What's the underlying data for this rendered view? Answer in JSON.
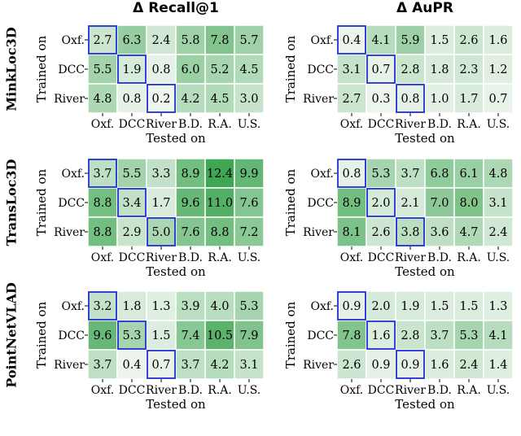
{
  "column_titles": [
    "Δ Recall@1",
    "Δ AuPR"
  ],
  "row_titles": [
    "MinkLoc3D",
    "TransLoc3D",
    "PointNetVLAD"
  ],
  "chart_data": [
    {
      "type": "heatmap",
      "title": "Δ Recall@1",
      "model": "MinkLoc3D",
      "xlabel": "Tested on",
      "ylabel": "Trained on",
      "x": [
        "Oxf.",
        "DCC",
        "River",
        "B.D.",
        "R.A.",
        "U.S."
      ],
      "y": [
        "Oxf.",
        "DCC",
        "River"
      ],
      "values": [
        [
          "2.7",
          "6.3",
          "2.4",
          "5.8",
          "7.8",
          "5.7"
        ],
        [
          "5.5",
          "1.9",
          "0.8",
          "6.0",
          "5.2",
          "4.5"
        ],
        [
          "4.8",
          "0.8",
          "0.2",
          "4.2",
          "4.5",
          "3.0"
        ]
      ],
      "highlighted_diagonal": true
    },
    {
      "type": "heatmap",
      "title": "Δ AuPR",
      "model": "MinkLoc3D",
      "xlabel": "Tested on",
      "ylabel": "Trained on",
      "x": [
        "Oxf.",
        "DCC",
        "River",
        "B.D.",
        "R.A.",
        "U.S."
      ],
      "y": [
        "Oxf.",
        "DCC",
        "River"
      ],
      "values": [
        [
          "0.4",
          "4.1",
          "5.9",
          "1.5",
          "2.6",
          "1.6"
        ],
        [
          "3.1",
          "0.7",
          "2.8",
          "1.8",
          "2.3",
          "1.2"
        ],
        [
          "2.7",
          "0.3",
          "0.8",
          "1.0",
          "1.7",
          "0.7"
        ]
      ],
      "highlighted_diagonal": true
    },
    {
      "type": "heatmap",
      "title": "Δ Recall@1",
      "model": "TransLoc3D",
      "xlabel": "Tested on",
      "ylabel": "Trained on",
      "x": [
        "Oxf.",
        "DCC",
        "River",
        "B.D.",
        "R.A.",
        "U.S."
      ],
      "y": [
        "Oxf.",
        "DCC",
        "River"
      ],
      "values": [
        [
          "3.7",
          "5.5",
          "3.3",
          "8.9",
          "12.4",
          "9.9"
        ],
        [
          "8.8",
          "3.4",
          "1.7",
          "9.6",
          "11.0",
          "7.6"
        ],
        [
          "8.8",
          "2.9",
          "5.0",
          "7.6",
          "8.8",
          "7.2"
        ]
      ],
      "highlighted_diagonal": true
    },
    {
      "type": "heatmap",
      "title": "Δ AuPR",
      "model": "TransLoc3D",
      "xlabel": "Tested on",
      "ylabel": "Trained on",
      "x": [
        "Oxf.",
        "DCC",
        "River",
        "B.D.",
        "R.A.",
        "U.S."
      ],
      "y": [
        "Oxf.",
        "DCC",
        "River"
      ],
      "values": [
        [
          "0.8",
          "5.3",
          "3.7",
          "6.8",
          "6.1",
          "4.8"
        ],
        [
          "8.9",
          "2.0",
          "2.1",
          "7.0",
          "8.0",
          "3.1"
        ],
        [
          "8.1",
          "2.6",
          "3.8",
          "3.6",
          "4.7",
          "2.4"
        ]
      ],
      "highlighted_diagonal": true
    },
    {
      "type": "heatmap",
      "title": "Δ Recall@1",
      "model": "PointNetVLAD",
      "xlabel": "Tested on",
      "ylabel": "Trained on",
      "x": [
        "Oxf.",
        "DCC",
        "River",
        "B.D.",
        "R.A.",
        "U.S."
      ],
      "y": [
        "Oxf.",
        "DCC",
        "River"
      ],
      "values": [
        [
          "3.2",
          "1.8",
          "1.3",
          "3.9",
          "4.0",
          "5.3"
        ],
        [
          "9.6",
          "5.3",
          "1.5",
          "7.4",
          "10.5",
          "7.9"
        ],
        [
          "3.7",
          "0.4",
          "0.7",
          "3.7",
          "4.2",
          "3.1"
        ]
      ],
      "highlighted_diagonal": true
    },
    {
      "type": "heatmap",
      "title": "Δ AuPR",
      "model": "PointNetVLAD",
      "xlabel": "Tested on",
      "ylabel": "Trained on",
      "x": [
        "Oxf.",
        "DCC",
        "River",
        "B.D.",
        "R.A.",
        "U.S."
      ],
      "y": [
        "Oxf.",
        "DCC",
        "River"
      ],
      "values": [
        [
          "0.9",
          "2.0",
          "1.9",
          "1.5",
          "1.5",
          "1.3"
        ],
        [
          "7.8",
          "1.6",
          "2.8",
          "3.7",
          "5.3",
          "4.1"
        ],
        [
          "2.6",
          "0.9",
          "0.9",
          "1.6",
          "2.4",
          "1.4"
        ]
      ],
      "highlighted_diagonal": true
    }
  ],
  "colors": {
    "low": "#f2f7f2",
    "high": "#3fa653",
    "highlight": "#1f2fd6",
    "text": "#000000"
  }
}
